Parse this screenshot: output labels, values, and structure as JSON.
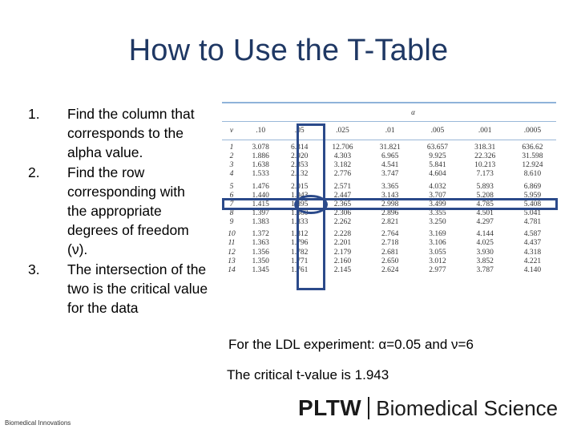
{
  "title": "How to Use the T-Table",
  "steps": [
    {
      "num": "1.",
      "text": "Find the column that corresponds to the alpha value."
    },
    {
      "num": "2.",
      "text": "Find the row corresponding with the appropriate degrees of freedom (ν)."
    },
    {
      "num": "3.",
      "text": "The intersection of the two is the critical value for the data"
    }
  ],
  "t_table": {
    "alpha_label": "α",
    "df_label": "ν",
    "columns": [
      ".10",
      ".05",
      ".025",
      ".01",
      ".005",
      ".001",
      ".0005"
    ],
    "rows": [
      [
        "1",
        "3.078",
        "6.314",
        "12.706",
        "31.821",
        "63.657",
        "318.31",
        "636.62"
      ],
      [
        "2",
        "1.886",
        "2.920",
        "4.303",
        "6.965",
        "9.925",
        "22.326",
        "31.598"
      ],
      [
        "3",
        "1.638",
        "2.353",
        "3.182",
        "4.541",
        "5.841",
        "10.213",
        "12.924"
      ],
      [
        "4",
        "1.533",
        "2.132",
        "2.776",
        "3.747",
        "4.604",
        "7.173",
        "8.610"
      ],
      [
        "5",
        "1.476",
        "2.015",
        "2.571",
        "3.365",
        "4.032",
        "5.893",
        "6.869"
      ],
      [
        "6",
        "1.440",
        "1.943",
        "2.447",
        "3.143",
        "3.707",
        "5.208",
        "5.959"
      ],
      [
        "7",
        "1.415",
        "1.895",
        "2.365",
        "2.998",
        "3.499",
        "4.785",
        "5.408"
      ],
      [
        "8",
        "1.397",
        "1.860",
        "2.306",
        "2.896",
        "3.355",
        "4.501",
        "5.041"
      ],
      [
        "9",
        "1.383",
        "1.833",
        "2.262",
        "2.821",
        "3.250",
        "4.297",
        "4.781"
      ],
      [
        "10",
        "1.372",
        "1.812",
        "2.228",
        "2.764",
        "3.169",
        "4.144",
        "4.587"
      ],
      [
        "11",
        "1.363",
        "1.796",
        "2.201",
        "2.718",
        "3.106",
        "4.025",
        "4.437"
      ],
      [
        "12",
        "1.356",
        "1.782",
        "2.179",
        "2.681",
        "3.055",
        "3.930",
        "4.318"
      ],
      [
        "13",
        "1.350",
        "1.771",
        "2.160",
        "2.650",
        "3.012",
        "3.852",
        "4.221"
      ],
      [
        "14",
        "1.345",
        "1.761",
        "2.145",
        "2.624",
        "2.977",
        "3.787",
        "4.140"
      ]
    ]
  },
  "ldl_text": "For the LDL experiment: α=0.05 and ν=6",
  "critical_text": "The critical t-value is 1.943",
  "footer_left": "Biomedical Innovations",
  "logo": {
    "mark": "PLTW",
    "text": "Biomedical Science"
  },
  "colors": {
    "title": "#1f3864",
    "highlight_box": "#2b4a8a",
    "table_rule": "#8fb3d9"
  }
}
